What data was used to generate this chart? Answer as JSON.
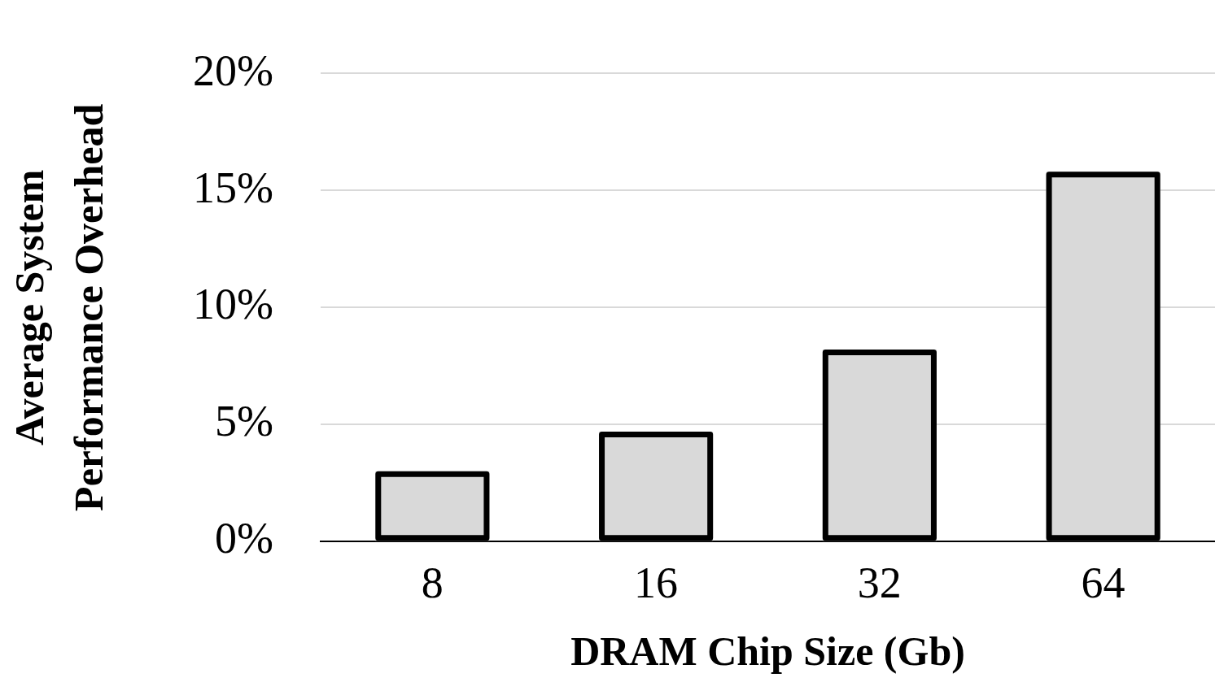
{
  "chart_data": {
    "type": "bar",
    "xlabel": "DRAM Chip Size (Gb)",
    "ylabel": "Average System Performance Overhead",
    "categories": [
      "8",
      "16",
      "32",
      "64"
    ],
    "values": [
      3.0,
      4.7,
      8.2,
      15.8
    ],
    "color": "#d9d9d9",
    "ylim": [
      0,
      20
    ],
    "yticks": [
      {
        "value": 0,
        "label": "0%"
      },
      {
        "value": 5,
        "label": "5%"
      },
      {
        "value": 10,
        "label": "10%"
      },
      {
        "value": 15,
        "label": "15%"
      },
      {
        "value": 20,
        "label": "20%"
      }
    ],
    "grid": "y",
    "legend": false
  }
}
